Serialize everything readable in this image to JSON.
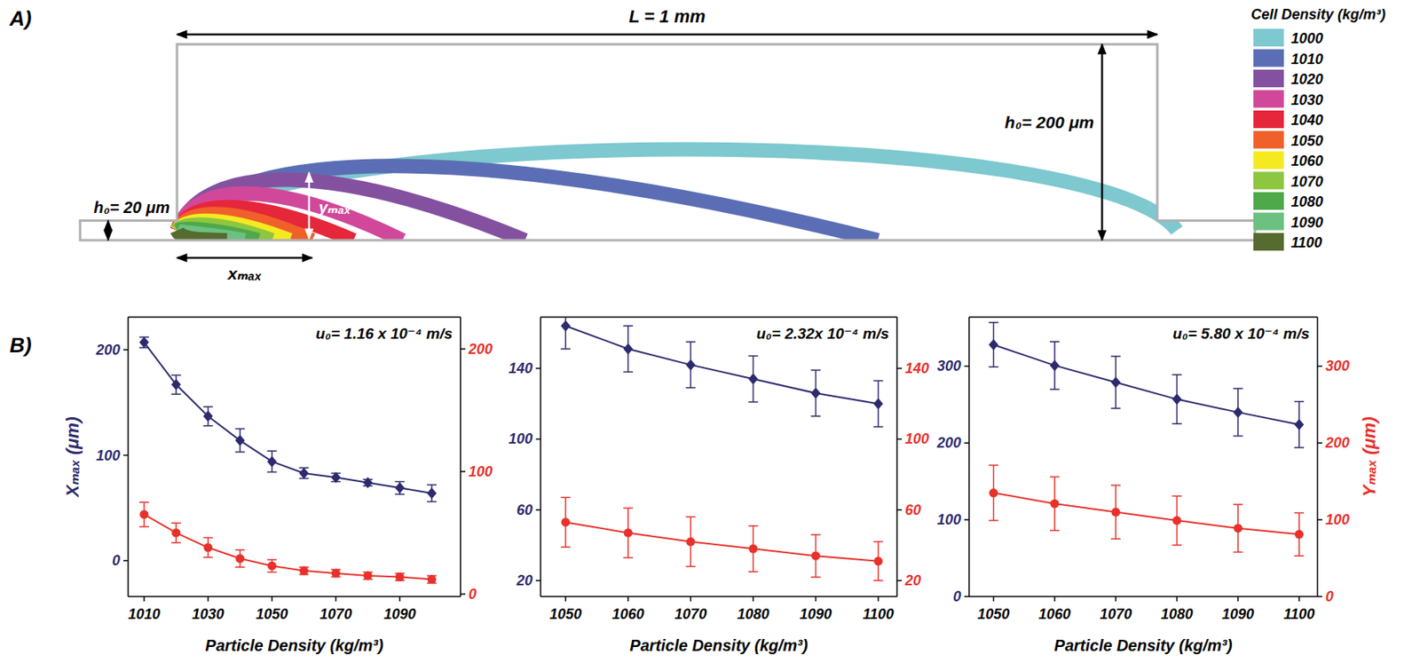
{
  "figure": {
    "panel_labels": [
      "A)",
      "B)"
    ]
  },
  "diagram": {
    "length": 1000,
    "chamber_height": 200,
    "inlet_height": 20,
    "length_label": "L = 1 mm",
    "chamber_height_label": "h₀= 200 μm",
    "inlet_height_label": "h₀= 20 μm",
    "xmax_label": "xₘₐₓ",
    "ymax_label": "yₘₐₓ",
    "legend_title": "Cell Density (kg/m³)",
    "trajectories": [
      {
        "density": 1000,
        "color": "#7ec8cf",
        "x_max": 1020,
        "y_max": 100
      },
      {
        "density": 1010,
        "color": "#5b6eb5",
        "x_max": 715,
        "y_max": 83
      },
      {
        "density": 1020,
        "color": "#8451a0",
        "x_max": 355,
        "y_max": 69
      },
      {
        "density": 1030,
        "color": "#d1489a",
        "x_max": 230,
        "y_max": 55
      },
      {
        "density": 1040,
        "color": "#e6263a",
        "x_max": 180,
        "y_max": 41
      },
      {
        "density": 1050,
        "color": "#f0602a",
        "x_max": 138,
        "y_max": 34
      },
      {
        "density": 1060,
        "color": "#f5ea22",
        "x_max": 115,
        "y_max": 27
      },
      {
        "density": 1070,
        "color": "#8dc63f",
        "x_max": 97,
        "y_max": 23
      },
      {
        "density": 1080,
        "color": "#4fa84a",
        "x_max": 83,
        "y_max": 18
      },
      {
        "density": 1090,
        "color": "#6cc080",
        "x_max": 69,
        "y_max": 14
      },
      {
        "density": 1100,
        "color": "#556b2f",
        "x_max": 51,
        "y_max": 9
      }
    ]
  },
  "chart_data": [
    {
      "type": "line",
      "title": "u₀= 1.16 x 10⁻⁴ m/s",
      "xlabel": "Particle Density (kg/m³)",
      "ylabel": "Xₘₐₓ (μm)",
      "x": [
        1010,
        1020,
        1030,
        1040,
        1050,
        1060,
        1070,
        1080,
        1090,
        1100
      ],
      "xlim": [
        1005,
        1109
      ],
      "xticks": [
        1010,
        1030,
        1050,
        1070,
        1090
      ],
      "ylim": [
        -34,
        231
      ],
      "yticks": [
        0,
        100,
        200
      ],
      "y2lim": [
        -2,
        226
      ],
      "y2ticks": [
        0,
        100,
        200
      ],
      "grid": false,
      "series": [
        {
          "color": "#2d2a6e",
          "marker": "diamond",
          "line_style": "solid",
          "values": [
            207,
            167,
            137,
            114,
            94,
            83,
            79,
            74,
            69,
            64
          ],
          "errors": [
            5,
            9,
            9,
            11,
            10,
            5,
            4,
            3,
            6,
            8
          ]
        },
        {
          "color": "#e8312b",
          "marker": "circle",
          "line_style": "solid",
          "axis": "y2",
          "values": [
            65,
            50,
            38,
            29,
            23,
            19,
            17,
            15,
            14,
            12
          ],
          "errors": [
            10,
            8,
            8,
            7,
            5,
            3,
            3,
            3,
            3,
            3
          ]
        }
      ]
    },
    {
      "type": "line",
      "title": "u₀= 2.32x 10⁻⁴ m/s",
      "xlabel": "Particle Density (kg/m³)",
      "x": [
        1050,
        1060,
        1070,
        1080,
        1090,
        1100
      ],
      "xlim": [
        1046,
        1103
      ],
      "xticks": [
        1050,
        1060,
        1070,
        1080,
        1090,
        1100
      ],
      "ylim": [
        11,
        169
      ],
      "yticks": [
        20,
        60,
        100,
        140
      ],
      "y2lim": [
        11,
        169
      ],
      "y2ticks": [
        20,
        60,
        100,
        140
      ],
      "grid": false,
      "series": [
        {
          "color": "#2d2a6e",
          "marker": "diamond",
          "line_style": "solid",
          "values": [
            164,
            151,
            142,
            134,
            126,
            120
          ],
          "errors": [
            13,
            13,
            13,
            13,
            13,
            13
          ]
        },
        {
          "color": "#e8312b",
          "marker": "circle",
          "line_style": "solid",
          "axis": "y2",
          "values": [
            53,
            47,
            42,
            38,
            34,
            31
          ],
          "errors": [
            14,
            14,
            14,
            13,
            12,
            11
          ]
        }
      ]
    },
    {
      "type": "line",
      "title": "u₀= 5.80 x 10⁻⁴ m/s",
      "xlabel": "Particle Density (kg/m³)",
      "y2label": "Yₘₐₓ (μm)",
      "x": [
        1050,
        1060,
        1070,
        1080,
        1090,
        1100
      ],
      "xlim": [
        1046,
        1103
      ],
      "xticks": [
        1050,
        1060,
        1070,
        1080,
        1090,
        1100
      ],
      "ylim": [
        0,
        364
      ],
      "yticks": [
        0,
        100,
        200,
        300
      ],
      "y2lim": [
        0,
        364
      ],
      "y2ticks": [
        0,
        100,
        200,
        300
      ],
      "grid": false,
      "series": [
        {
          "color": "#2d2a6e",
          "marker": "diamond",
          "line_style": "solid",
          "values": [
            328,
            301,
            279,
            257,
            240,
            224
          ],
          "errors": [
            29,
            31,
            34,
            32,
            31,
            30
          ]
        },
        {
          "color": "#e8312b",
          "marker": "circle",
          "line_style": "solid",
          "axis": "y2",
          "values": [
            135,
            121,
            110,
            99,
            89,
            81
          ],
          "errors": [
            36,
            35,
            35,
            32,
            31,
            28
          ]
        }
      ]
    }
  ]
}
